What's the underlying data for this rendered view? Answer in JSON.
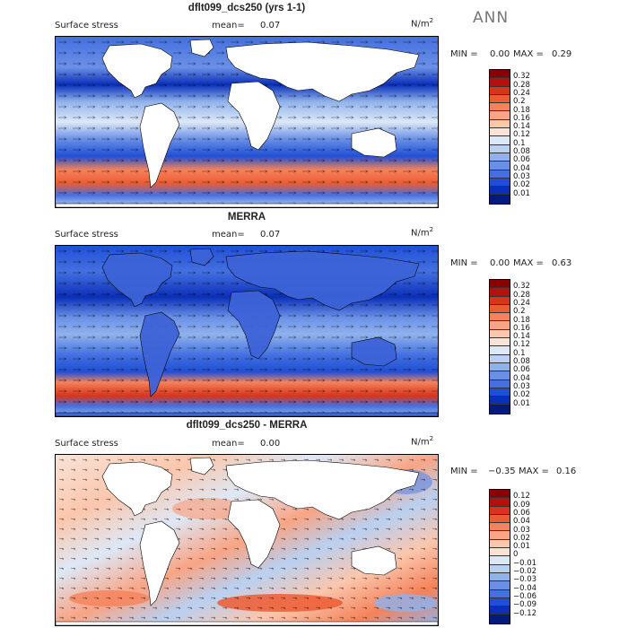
{
  "season": "ANN",
  "panels": [
    {
      "title": "dflt099_dcs250 (yrs 1-1)",
      "field": "Surface stress",
      "mean_label": "mean=",
      "mean": "0.07",
      "units": "N/m",
      "units_sup": "2",
      "min_label": "MIN =",
      "min": "0.00",
      "max_label": "MAX =",
      "max": "0.29",
      "colorbar": {
        "labels": [
          "0.32",
          "0.28",
          "0.24",
          "0.2",
          "0.18",
          "0.16",
          "0.14",
          "0.12",
          "0.1",
          "0.08",
          "0.06",
          "0.04",
          "0.03",
          "0.02",
          "0.01"
        ],
        "colors": [
          "#8b0000",
          "#b5100c",
          "#d8341c",
          "#ec5c34",
          "#f5825a",
          "#f9a484",
          "#fbc6ac",
          "#f8e3d6",
          "#dde8f6",
          "#b9d0f1",
          "#8fb2ec",
          "#6a90e6",
          "#4470e0",
          "#1f4fd6",
          "#0a2fb8",
          "#001a7e"
        ]
      }
    },
    {
      "title": "MERRA",
      "field": "Surface stress",
      "mean_label": "mean=",
      "mean": "0.07",
      "units": "N/m",
      "units_sup": "2",
      "min_label": "MIN =",
      "min": "0.00",
      "max_label": "MAX =",
      "max": "0.63",
      "colorbar": {
        "labels": [
          "0.32",
          "0.28",
          "0.24",
          "0.2",
          "0.18",
          "0.16",
          "0.14",
          "0.12",
          "0.1",
          "0.08",
          "0.06",
          "0.04",
          "0.03",
          "0.02",
          "0.01"
        ],
        "colors": [
          "#8b0000",
          "#b5100c",
          "#d8341c",
          "#ec5c34",
          "#f5825a",
          "#f9a484",
          "#fbc6ac",
          "#f8e3d6",
          "#dde8f6",
          "#b9d0f1",
          "#8fb2ec",
          "#6a90e6",
          "#4470e0",
          "#1f4fd6",
          "#0a2fb8",
          "#001a7e"
        ]
      }
    },
    {
      "title": "dflt099_dcs250 - MERRA",
      "field": "Surface stress",
      "mean_label": "mean=",
      "mean": "0.00",
      "units": "N/m",
      "units_sup": "2",
      "min_label": "MIN =",
      "min": "−0.35",
      "max_label": "MAX =",
      "max": "0.16",
      "colorbar": {
        "labels": [
          "0.12",
          "0.09",
          "0.06",
          "0.04",
          "0.03",
          "0.02",
          "0.01",
          "0",
          "−0.01",
          "−0.02",
          "−0.03",
          "−0.04",
          "−0.06",
          "−0.09",
          "−0.12"
        ],
        "colors": [
          "#8b0000",
          "#b5100c",
          "#d8341c",
          "#ec5c34",
          "#f5825a",
          "#f9a484",
          "#fbc6ac",
          "#f8e3d6",
          "#dde8f6",
          "#b9d0f1",
          "#8fb2ec",
          "#6a90e6",
          "#4470e0",
          "#1f4fd6",
          "#0a2fb8",
          "#001a7e"
        ]
      }
    }
  ],
  "chart_data": [
    {
      "type": "heatmap",
      "title": "dflt099_dcs250 (yrs 1-1)",
      "variable": "Surface stress",
      "units": "N/m2",
      "season": "ANN",
      "mean": 0.07,
      "min": 0.0,
      "max": 0.29,
      "color_levels": [
        0.01,
        0.02,
        0.03,
        0.04,
        0.06,
        0.08,
        0.1,
        0.12,
        0.14,
        0.16,
        0.18,
        0.2,
        0.24,
        0.28,
        0.32
      ]
    },
    {
      "type": "heatmap",
      "title": "MERRA",
      "variable": "Surface stress",
      "units": "N/m2",
      "mean": 0.07,
      "min": 0.0,
      "max": 0.63,
      "color_levels": [
        0.01,
        0.02,
        0.03,
        0.04,
        0.06,
        0.08,
        0.1,
        0.12,
        0.14,
        0.16,
        0.18,
        0.2,
        0.24,
        0.28,
        0.32
      ]
    },
    {
      "type": "heatmap",
      "title": "dflt099_dcs250 - MERRA",
      "variable": "Surface stress",
      "units": "N/m2",
      "mean": 0.0,
      "min": -0.35,
      "max": 0.16,
      "color_levels": [
        -0.12,
        -0.09,
        -0.06,
        -0.04,
        -0.03,
        -0.02,
        -0.01,
        0,
        0.01,
        0.02,
        0.03,
        0.04,
        0.06,
        0.09,
        0.12
      ]
    }
  ]
}
